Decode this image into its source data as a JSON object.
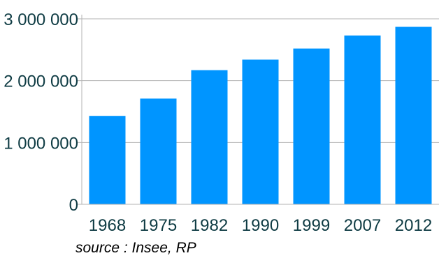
{
  "chart_data": {
    "type": "bar",
    "categories": [
      "1968",
      "1975",
      "1982",
      "1990",
      "1999",
      "2007",
      "2012"
    ],
    "series": [
      {
        "values": [
          1430000,
          1710000,
          2170000,
          2340000,
          2520000,
          2730000,
          2870000
        ],
        "color": "#0095ff"
      }
    ],
    "y_ticks": [
      0,
      1000000,
      2000000,
      3000000
    ],
    "y_tick_labels": [
      "0",
      "1 000 000",
      "2 000 000",
      "3 000 000"
    ],
    "ylim": [
      0,
      3000000
    ],
    "grid": true,
    "legend": "none"
  },
  "source": "source : Insee, RP",
  "colors": {
    "bar": "#0095ff",
    "grid": "#b3b3b3",
    "axis": "#b3b3b3",
    "text": "#0e3b43"
  }
}
